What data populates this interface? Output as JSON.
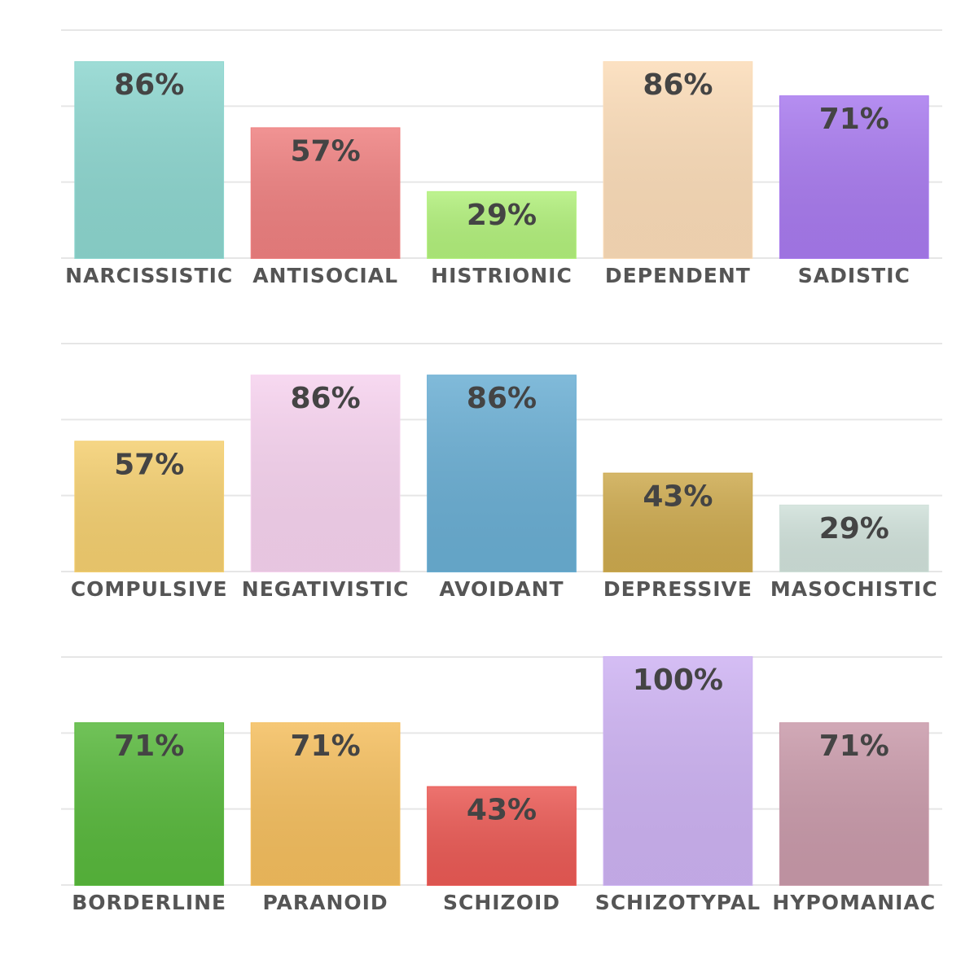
{
  "chart_data": [
    {
      "type": "bar",
      "categories": [
        "NARCISSISTIC",
        "ANTISOCIAL",
        "HISTRIONIC",
        "DEPENDENT",
        "SADISTIC"
      ],
      "values": [
        86,
        57,
        29,
        86,
        71
      ],
      "value_labels": [
        "86%",
        "57%",
        "29%",
        "86%",
        "71%"
      ],
      "colors": [
        "#8dd6cf",
        "#ee8080",
        "#b2f07c",
        "#fbdcb8",
        "#a87aee"
      ],
      "ylim": [
        0,
        100
      ],
      "yticks": [
        0,
        33.33,
        66.67,
        100
      ],
      "grid": true
    },
    {
      "type": "bar",
      "categories": [
        "COMPULSIVE",
        "NEGATIVISTIC",
        "AVOIDANT",
        "DEPRESSIVE",
        "MASOCHISTIC"
      ],
      "values": [
        57,
        86,
        86,
        43,
        29
      ],
      "value_labels": [
        "57%",
        "86%",
        "86%",
        "43%",
        "29%"
      ],
      "colors": [
        "#f4cf70",
        "#f6d2ee",
        "#6aaed3",
        "#cdaa4f",
        "#d0e1da"
      ],
      "ylim": [
        0,
        100
      ],
      "yticks": [
        0,
        33.33,
        66.67,
        100
      ],
      "grid": true
    },
    {
      "type": "bar",
      "categories": [
        "BORDERLINE",
        "PARANOID",
        "SCHIZOID",
        "SCHIZOTYPAL",
        "HYPOMANIAC"
      ],
      "values": [
        71,
        71,
        43,
        100,
        71
      ],
      "value_labels": [
        "71%",
        "71%",
        "43%",
        "100%",
        "71%"
      ],
      "colors": [
        "#58b83c",
        "#f4be5e",
        "#ea5a55",
        "#cdb2f2",
        "#c99aaa"
      ],
      "ylim": [
        0,
        100
      ],
      "yticks": [
        0,
        33.33,
        66.67,
        100
      ],
      "grid": true
    }
  ]
}
